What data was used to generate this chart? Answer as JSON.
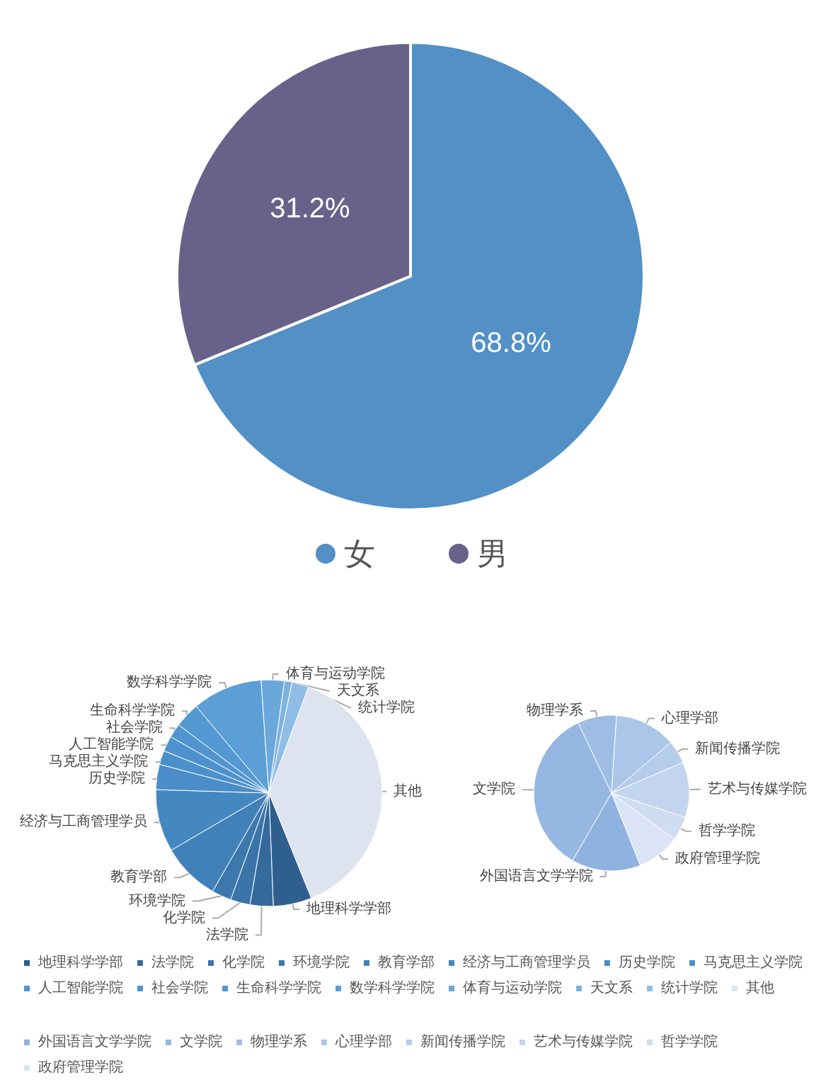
{
  "chart_data": [
    {
      "type": "pie",
      "categories": [
        "女",
        "男"
      ],
      "values": [
        68.8,
        31.2
      ],
      "colors": [
        "#5290c6",
        "#68628a"
      ],
      "value_labels": [
        "68.8%",
        "31.2%"
      ],
      "legend": "bottom"
    },
    {
      "type": "pie",
      "categories": [
        "地理科学学部",
        "法学院",
        "化学院",
        "环境学院",
        "教育学部",
        "经济与工商管理学员",
        "历史学院",
        "马克思主义学院",
        "人工智能学院",
        "社会学院",
        "生命科学学院",
        "数学科学学院",
        "体育与运动学院",
        "天文系",
        "统计学院",
        "其他"
      ],
      "values": [
        5.5,
        3.3,
        2.8,
        2.8,
        8.3,
        8.9,
        3.6,
        2.0,
        2.2,
        2.0,
        3.6,
        10.0,
        3.3,
        1.1,
        2.4,
        38.2
      ],
      "colors": [
        "#2e5f8e",
        "#346a9c",
        "#3a74a8",
        "#3d78ad",
        "#4181b9",
        "#4587c0",
        "#4a8dc8",
        "#4c90cb",
        "#4e92cd",
        "#5095cf",
        "#5398d2",
        "#5b9fd6",
        "#6aa8dc",
        "#7db3e0",
        "#8fbde5",
        "#dde3ef"
      ],
      "legend": "bottom"
    },
    {
      "type": "pie",
      "categories": [
        "外国语言文学学院",
        "文学院",
        "物理学系",
        "心理学部",
        "新闻传播学院",
        "艺术与传媒学院",
        "哲学学院",
        "政府管理学院"
      ],
      "values": [
        14.4,
        34.6,
        8.1,
        12.7,
        4.8,
        11.5,
        5.0,
        8.9
      ],
      "colors": [
        "#8fb2e0",
        "#95b7e2",
        "#9fbde4",
        "#abc6e8",
        "#b5ccea",
        "#c3d5ee",
        "#cfdcf1",
        "#dbe4f4"
      ],
      "legend": "bottom"
    }
  ]
}
